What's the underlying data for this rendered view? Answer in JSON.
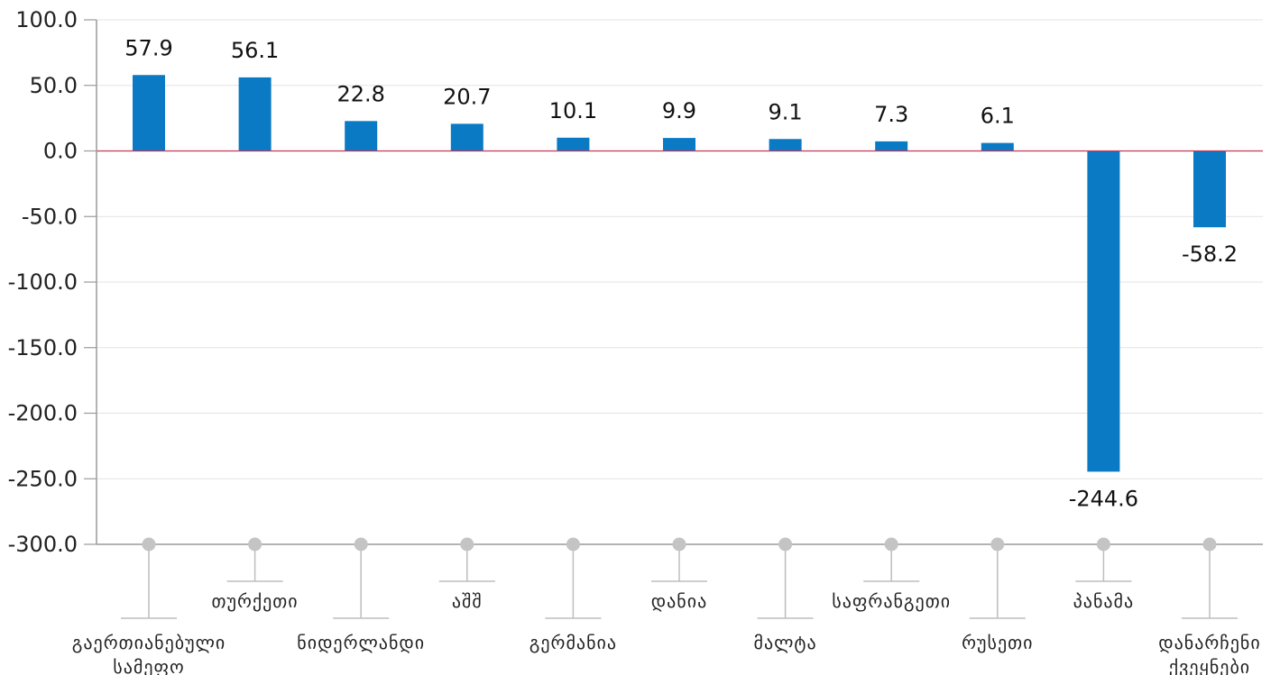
{
  "chart_data": {
    "type": "bar",
    "title": "",
    "xlabel": "",
    "ylabel": "",
    "ylim": [
      -300,
      100
    ],
    "yticks": [
      "100.0",
      "50.0",
      "0.0",
      "-50.0",
      "-100.0",
      "-150.0",
      "-200.0",
      "-250.0",
      "-300.0"
    ],
    "ytick_values": [
      100,
      50,
      0,
      -50,
      -100,
      -150,
      -200,
      -250,
      -300
    ],
    "grid": true,
    "categories": [
      [
        "გაერთიანებული",
        "სამეფო"
      ],
      [
        "თურქეთი"
      ],
      [
        "ნიდერლანდი"
      ],
      [
        "აშშ"
      ],
      [
        "გერმანია"
      ],
      [
        "დანია"
      ],
      [
        "მალტა"
      ],
      [
        "საფრანგეთი"
      ],
      [
        "რუსეთი"
      ],
      [
        "პანამა"
      ],
      [
        "დანარჩენი",
        "ქვეყნები"
      ]
    ],
    "values": [
      57.9,
      56.1,
      22.8,
      20.7,
      10.1,
      9.9,
      9.1,
      7.3,
      6.1,
      -244.6,
      -58.2
    ],
    "value_labels": [
      "57.9",
      "56.1",
      "22.8",
      "20.7",
      "10.1",
      "9.9",
      "9.1",
      "7.3",
      "6.1",
      "-244.6",
      "-58.2"
    ],
    "label_level": [
      "low",
      "high",
      "low",
      "high",
      "low",
      "high",
      "low",
      "high",
      "low",
      "high",
      "low"
    ],
    "colors": {
      "bar": "#0A7AC4",
      "zero_line": "#C0395A",
      "grid": "#E3E3E3",
      "axis": "#9A9A9A",
      "leader": "#BDBDBD"
    }
  }
}
